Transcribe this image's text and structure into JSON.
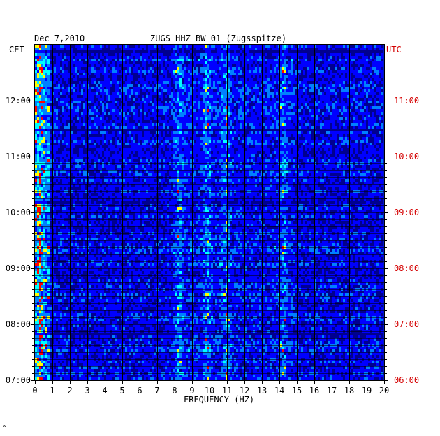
{
  "chart_data": {
    "type": "heatmap",
    "title": "ZUGS HHZ BW 01 (Zugsspitze)",
    "date": "Dec 7,2010",
    "left_axis_label": "CET",
    "right_axis_label": "UTC",
    "xlabel": "FREQUENCY (HZ)",
    "xlim": [
      0,
      20
    ],
    "x_ticks": [
      "0",
      "1",
      "2",
      "3",
      "4",
      "5",
      "6",
      "7",
      "8",
      "9",
      "10",
      "11",
      "12",
      "13",
      "14",
      "15",
      "16",
      "17",
      "18",
      "19",
      "20"
    ],
    "y_ticks_cet": [
      "12:00",
      "11:00",
      "10:00",
      "09:00",
      "08:00",
      "07:00"
    ],
    "y_ticks_utc": [
      "11:00",
      "10:00",
      "09:00",
      "08:00",
      "07:00",
      "06:00"
    ],
    "time_range_cet": [
      "07:00",
      "13:00"
    ],
    "grid": true,
    "colormap": [
      "#00008f",
      "#0000ff",
      "#0080ff",
      "#00ffff",
      "#ffff00",
      "#ff0000"
    ],
    "background_color": "#0018c8",
    "dominant_frequency_bands_hz": [
      0.3,
      8.3,
      9.9,
      11.0,
      14.3
    ]
  },
  "footer": {
    "mark": "ʷ"
  }
}
